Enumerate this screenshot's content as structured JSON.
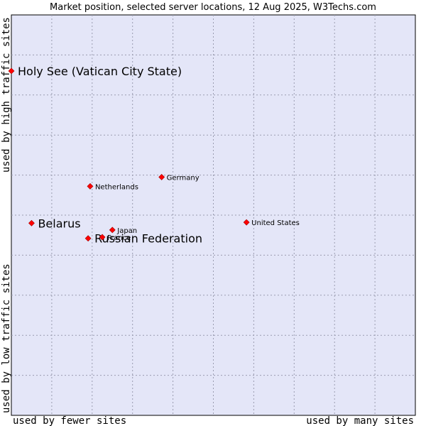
{
  "chart_data": {
    "type": "scatter",
    "title": "Market position, selected server locations, 12 Aug 2025, W3Techs.com",
    "xlabel_left": "used by fewer sites",
    "xlabel_right": "used by many sites",
    "ylabel_bottom": "used by low traffic sites",
    "ylabel_top": "used by high traffic sites",
    "xlim": [
      0,
      10
    ],
    "ylim": [
      0,
      10
    ],
    "grid": true,
    "marker_color": "#ff0000",
    "plot_background": "#e4e6f8",
    "points": [
      {
        "label": "Holy See (Vatican City State)",
        "x": 0.0,
        "y": 8.6,
        "highlight": true
      },
      {
        "label": "Belarus",
        "x": 0.5,
        "y": 4.8,
        "highlight": true
      },
      {
        "label": "Russian Federation",
        "x": 1.9,
        "y": 4.42,
        "highlight": true
      },
      {
        "label": "Netherlands",
        "x": 1.95,
        "y": 5.72,
        "highlight": false
      },
      {
        "label": "Germany",
        "x": 3.72,
        "y": 5.95,
        "highlight": false
      },
      {
        "label": "Japan",
        "x": 2.5,
        "y": 4.63,
        "highlight": false
      },
      {
        "label": "France",
        "x": 2.25,
        "y": 4.45,
        "highlight": false
      },
      {
        "label": "United States",
        "x": 5.82,
        "y": 4.82,
        "highlight": false
      }
    ]
  }
}
